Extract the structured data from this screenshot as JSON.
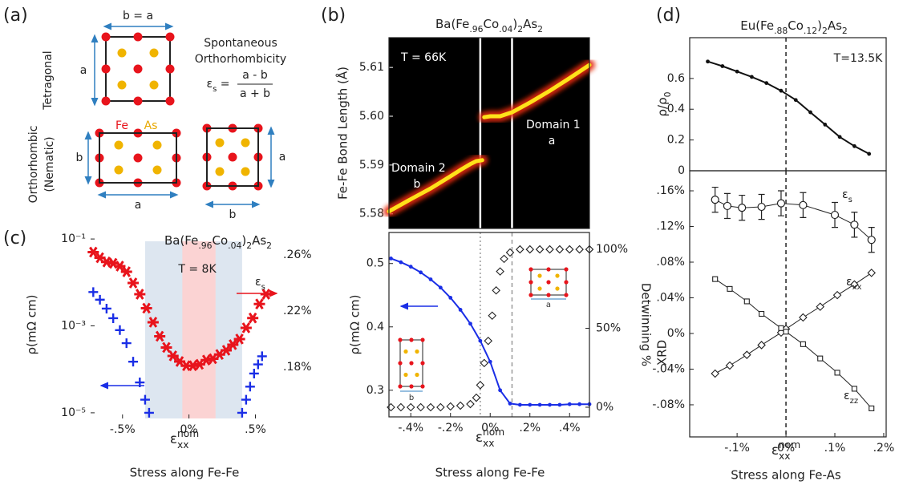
{
  "panel_labels": [
    "(a)",
    "(b)",
    "(c)",
    "(d)"
  ],
  "diagram": {
    "tetragonal_width": "b = a",
    "tetragonal_height": "a",
    "tetragonal": "Tetragonal",
    "heading": [
      "Spontaneous",
      "Orthorhombicity"
    ],
    "formula": {
      "lhs": [
        {
          "text": "ε"
        },
        {
          "text": "s",
          "sub": true
        },
        {
          "text": " ="
        }
      ],
      "numerator": "a - b",
      "denominator": "a + b"
    },
    "fe": "Fe",
    "as": "As",
    "orthorhombic": [
      "Orthorhombic",
      "(Nematic)"
    ],
    "ortho_left": {
      "height": "b",
      "width": "a"
    },
    "ortho_right": {
      "height": "a",
      "width": "b"
    }
  },
  "chart_data": [
    {
      "type": "line",
      "background": "#000",
      "title": [
        {
          "text": "Ba(Fe"
        },
        {
          "text": ".96",
          "sub": true
        },
        {
          "text": "Co"
        },
        {
          "text": ".04",
          "sub": true
        },
        {
          "text": ")"
        },
        {
          "text": "2",
          "sub": true
        },
        {
          "text": "As"
        },
        {
          "text": "2",
          "sub": true
        }
      ],
      "ylabel": "Fe-Fe Bond Length (Å)",
      "xlim": [
        -0.51,
        0.5
      ],
      "ylim": [
        5.577,
        5.6161
      ],
      "yticks": [
        5.58,
        5.59,
        {
          "value": 5.6,
          "label": "5.60"
        },
        5.61
      ],
      "vlines": [
        {
          "value": -0.05,
          "style": "solid",
          "color": "#ffffff"
        },
        {
          "value": 0.11,
          "style": "solid",
          "color": "#ffffff"
        }
      ],
      "series": [
        {
          "style": "glow",
          "color": "#ffe21a",
          "x": [
            -0.51,
            -0.4,
            -0.3,
            -0.2,
            -0.15,
            -0.1,
            -0.07,
            -0.04
          ],
          "values": [
            5.5805,
            5.583,
            5.5852,
            5.5877,
            5.589,
            5.5902,
            5.5908,
            5.591
          ]
        },
        {
          "style": "glow",
          "color": "#ffe21a",
          "x": [
            -0.03,
            0.0,
            0.05,
            0.11,
            0.2,
            0.3,
            0.4,
            0.5
          ],
          "values": [
            5.5998,
            5.6,
            5.6,
            5.6008,
            5.6028,
            5.6052,
            5.6078,
            5.6105
          ]
        }
      ],
      "annotations": [
        {
          "text": "T = 66K",
          "color": "#ffffff"
        },
        {
          "text": "Domain 2",
          "color": "#ffffff"
        },
        {
          "text": "b",
          "color": "#ffffff"
        },
        {
          "text": "Domain 1",
          "color": "#ffffff"
        },
        {
          "text": "a",
          "color": "#ffffff"
        }
      ]
    },
    {
      "type": "scatter",
      "ylabel": "ρ(mΩ cm)",
      "y2label": "Detwinning %",
      "xlabel": [
        {
          "text": "ε"
        },
        {
          "text": "xx",
          "sub": true
        },
        {
          "text": "nom",
          "sup": true
        }
      ],
      "caption": "Stress along Fe-Fe",
      "xlim": [
        -0.51,
        0.5
      ],
      "ylim": [
        0.258,
        0.549
      ],
      "y2lim": [
        -6.1,
        110.7
      ],
      "xticks": [
        {
          "value": -0.4,
          "label": "-.4%"
        },
        {
          "value": -0.2,
          "label": "-.2%"
        },
        {
          "value": 0,
          "label": "0%"
        },
        {
          "value": 0.2,
          "label": ".2%"
        },
        {
          "value": 0.4,
          "label": ".4%"
        }
      ],
      "yticks": [
        0.3,
        0.4,
        0.5
      ],
      "y2ticks": [
        {
          "value": 0,
          "label": "0%"
        },
        {
          "value": 50,
          "label": "50%"
        },
        {
          "value": 100,
          "label": "100%"
        }
      ],
      "vlines": [
        {
          "value": -0.05,
          "style": "dotted",
          "color": "#999999"
        },
        {
          "value": 0.11,
          "style": "dashed",
          "color": "#999999"
        }
      ],
      "series": [
        {
          "marker": "dot",
          "line": true,
          "color": "#1a2ee6",
          "x": [
            -0.5,
            -0.45,
            -0.4,
            -0.35,
            -0.3,
            -0.25,
            -0.2,
            -0.15,
            -0.1,
            -0.05,
            0,
            0.05,
            0.1,
            0.15,
            0.2,
            0.25,
            0.3,
            0.35,
            0.4,
            0.45,
            0.5
          ],
          "values": [
            0.508,
            0.502,
            0.495,
            0.486,
            0.475,
            0.462,
            0.446,
            0.427,
            0.405,
            0.378,
            0.345,
            0.3,
            0.279,
            0.277,
            0.277,
            0.277,
            0.277,
            0.277,
            0.278,
            0.278,
            0.278
          ]
        },
        {
          "marker": "diamond",
          "axis": "y2",
          "color": "#222222",
          "x": [
            -0.5,
            -0.45,
            -0.4,
            -0.35,
            -0.3,
            -0.25,
            -0.2,
            -0.15,
            -0.1,
            -0.07,
            -0.05,
            -0.03,
            -0.01,
            0.01,
            0.03,
            0.05,
            0.07,
            0.1,
            0.15,
            0.2,
            0.25,
            0.3,
            0.35,
            0.4,
            0.45,
            0.5
          ],
          "values": [
            0,
            0,
            0,
            0,
            0,
            0,
            0.5,
            1,
            2,
            6,
            14,
            28,
            42,
            58,
            74,
            86,
            94,
            98,
            100,
            100,
            100,
            100,
            100,
            100,
            100,
            100
          ]
        }
      ],
      "annotations": [
        {
          "text": "b",
          "color": "#333333"
        },
        {
          "text": "a",
          "color": "#333333"
        }
      ]
    },
    {
      "type": "scatter",
      "ylog": true,
      "title": [
        {
          "text": "Ba(Fe"
        },
        {
          "text": ".96",
          "sub": true
        },
        {
          "text": "Co"
        },
        {
          "text": ".04",
          "sub": true
        },
        {
          "text": ")"
        },
        {
          "text": "2",
          "sub": true
        },
        {
          "text": "As"
        },
        {
          "text": "2",
          "sub": true
        }
      ],
      "ylabel": "ρ(mΩ cm)",
      "xlabel": [
        {
          "text": "ε"
        },
        {
          "text": "xx",
          "sub": true
        },
        {
          "text": "nom",
          "sup": true
        }
      ],
      "caption": "Stress along Fe-Fe",
      "xlim": [
        -0.74,
        0.66
      ],
      "ylim": [
        7.4e-06,
        0.19
      ],
      "y2lim": [
        0.1434,
        0.28
      ],
      "xticks": [
        {
          "value": -0.5,
          "label": "-.5%"
        },
        {
          "value": 0,
          "label": "0%"
        },
        {
          "value": 0.5,
          "label": ".5%"
        }
      ],
      "yticks": [
        {
          "value": 0.1,
          "label": "10⁻¹"
        },
        {
          "value": 0.001,
          "label": "10⁻³"
        },
        {
          "value": 1e-05,
          "label": "10⁻⁵"
        }
      ],
      "y2ticks": [
        {
          "value": 0.18,
          "label": ".18%"
        },
        {
          "value": 0.22,
          "label": ".22%"
        },
        {
          "value": 0.26,
          "label": ".26%"
        }
      ],
      "bands": [
        {
          "from": -0.33,
          "to": 0.4,
          "color": "#dde6f0"
        },
        {
          "from": -0.05,
          "to": 0.2,
          "color": "#fbd3d3"
        }
      ],
      "series": [
        {
          "marker": "star",
          "axis": "y2",
          "color": "#e8141c",
          "x": [
            -0.72,
            -0.67,
            -0.62,
            -0.57,
            -0.52,
            -0.47,
            -0.42,
            -0.37,
            -0.32,
            -0.27,
            -0.22,
            -0.17,
            -0.12,
            -0.07,
            -0.02,
            0.03,
            0.08,
            0.13,
            0.18,
            0.23,
            0.28,
            0.33,
            0.38,
            0.43,
            0.48,
            0.53,
            0.58
          ],
          "values": [
            0.262,
            0.258,
            0.255,
            0.254,
            0.252,
            0.248,
            0.24,
            0.232,
            0.222,
            0.212,
            0.202,
            0.194,
            0.188,
            0.184,
            0.181,
            0.181,
            0.182,
            0.185,
            0.186,
            0.189,
            0.192,
            0.196,
            0.2,
            0.208,
            0.215,
            0.225,
            0.232
          ]
        },
        {
          "marker": "plus",
          "color": "#1a2ee6",
          "x": [
            -0.72,
            -0.67,
            -0.62,
            -0.57,
            -0.52,
            -0.47,
            -0.42,
            -0.37,
            -0.33,
            -0.3
          ],
          "values": [
            0.006,
            0.004,
            0.0025,
            0.0015,
            0.0008,
            0.0004,
            0.00015,
            5e-05,
            2e-05,
            1e-05
          ]
        },
        {
          "marker": "plus",
          "color": "#1a2ee6",
          "x": [
            0.4,
            0.43,
            0.46,
            0.49,
            0.52,
            0.55
          ],
          "values": [
            1e-05,
            2e-05,
            4e-05,
            8e-05,
            0.00013,
            0.0002
          ]
        }
      ],
      "annotations": [
        {
          "text": "T = 8K",
          "color": "#222222"
        },
        {
          "text": [
            {
              "text": "ε"
            },
            {
              "text": "s",
              "sub": true
            }
          ],
          "color": "#222222"
        }
      ]
    },
    {
      "type": "line",
      "title": [
        {
          "text": "Eu(Fe"
        },
        {
          "text": ".88",
          "sub": true
        },
        {
          "text": "Co"
        },
        {
          "text": ".12",
          "sub": true
        },
        {
          "text": ")"
        },
        {
          "text": "2",
          "sub": true
        },
        {
          "text": "As"
        },
        {
          "text": "2",
          "sub": true
        }
      ],
      "ylabel": [
        {
          "text": "ρ/ρ"
        },
        {
          "text": "0",
          "sub": true
        }
      ],
      "xlim": [
        -0.197,
        0.205
      ],
      "ylim": [
        0,
        0.865
      ],
      "yticks": [
        0,
        0.2,
        0.4,
        0.6
      ],
      "vlines": [
        {
          "value": 0,
          "style": "dashed",
          "color": "#222222"
        }
      ],
      "series": [
        {
          "marker": "dot",
          "line": true,
          "color": "#111111",
          "x": [
            -0.16,
            -0.13,
            -0.1,
            -0.07,
            -0.04,
            -0.01,
            0.02,
            0.05,
            0.08,
            0.11,
            0.14,
            0.17
          ],
          "values": [
            0.71,
            0.68,
            0.645,
            0.61,
            0.57,
            0.52,
            0.46,
            0.38,
            0.3,
            0.22,
            0.16,
            0.11
          ]
        }
      ],
      "annotations": [
        {
          "text": "T=13.5K",
          "color": "#222222"
        }
      ]
    },
    {
      "type": "line",
      "ylabel": "XRD",
      "xlabel": [
        {
          "text": "ε"
        },
        {
          "text": "xx",
          "sub": true
        },
        {
          "text": "nom",
          "sup": true
        }
      ],
      "caption": "Stress along Fe-As",
      "xlim": [
        -0.197,
        0.205
      ],
      "ylim": [
        -0.116,
        0.1825
      ],
      "xticks": [
        {
          "value": -0.1,
          "label": "-.1%"
        },
        {
          "value": 0,
          "label": "0%"
        },
        {
          "value": 0.1,
          "label": ".1%"
        },
        {
          "value": 0.2,
          "label": ".2%"
        }
      ],
      "yticks": [
        {
          "value": -0.08,
          "label": "-.08%"
        },
        {
          "value": -0.04,
          "label": "-.04%"
        },
        {
          "value": 0,
          "label": "0%"
        },
        {
          "value": 0.04,
          "label": ".04%"
        },
        {
          "value": 0.08,
          "label": ".08%"
        },
        {
          "value": 0.12,
          "label": ".12%"
        },
        {
          "value": 0.16,
          "label": ".16%"
        }
      ],
      "vlines": [
        {
          "value": 0,
          "style": "dashed",
          "color": "#222222"
        }
      ],
      "series": [
        {
          "marker": "circle",
          "line": true,
          "color": "#222222",
          "x": [
            -0.145,
            -0.12,
            -0.09,
            -0.05,
            -0.01,
            0.035,
            0.1,
            0.14,
            0.175
          ],
          "values": [
            0.15,
            0.143,
            0.141,
            0.142,
            0.146,
            0.144,
            0.133,
            0.122,
            0.105
          ],
          "errors": [
            0.014,
            0.014,
            0.014,
            0.014,
            0.014,
            0.014,
            0.014,
            0.014,
            0.014
          ]
        },
        {
          "marker": "diamond",
          "line": true,
          "color": "#222222",
          "x": [
            -0.145,
            -0.115,
            -0.08,
            -0.05,
            -0.01,
            0,
            0.035,
            0.07,
            0.105,
            0.14,
            0.175
          ],
          "values": [
            -0.045,
            -0.036,
            -0.024,
            -0.013,
            0.001,
            0.005,
            0.018,
            0.03,
            0.043,
            0.055,
            0.068
          ]
        },
        {
          "marker": "square",
          "line": true,
          "color": "#222222",
          "x": [
            -0.145,
            -0.115,
            -0.08,
            -0.05,
            -0.01,
            0,
            0.035,
            0.07,
            0.105,
            0.14,
            0.175
          ],
          "values": [
            0.061,
            0.05,
            0.036,
            0.022,
            0.006,
            0.002,
            -0.012,
            -0.028,
            -0.044,
            -0.062,
            -0.084
          ]
        }
      ],
      "annotations": [
        {
          "text": [
            {
              "text": "ε"
            },
            {
              "text": "s",
              "sub": true
            }
          ],
          "color": "#222222"
        },
        {
          "text": [
            {
              "text": "ε"
            },
            {
              "text": "xx",
              "sub": true
            }
          ],
          "color": "#222222"
        },
        {
          "text": [
            {
              "text": "ε"
            },
            {
              "text": "zz",
              "sub": true
            }
          ],
          "color": "#222222"
        }
      ]
    }
  ]
}
